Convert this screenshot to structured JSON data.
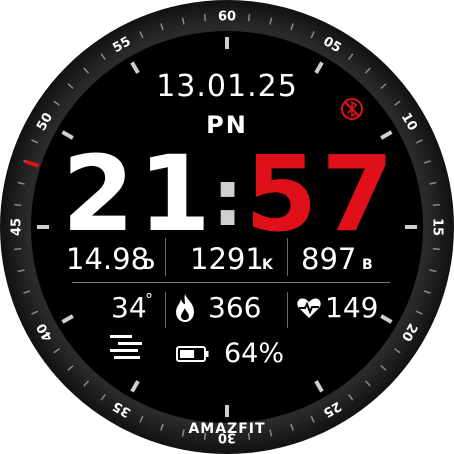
{
  "bezel": {
    "tick_labels": [
      "60",
      "05",
      "10",
      "15",
      "20",
      "25",
      "30",
      "35",
      "40",
      "45",
      "50",
      "55"
    ],
    "brand": "AMAZFIT",
    "seconds_marker_value": 48,
    "accent_color": "#e0101a"
  },
  "date": "13.01.25",
  "weekday": "PN",
  "time": {
    "hours": "21",
    "separator": ":",
    "minutes": "57"
  },
  "stats_row": {
    "distance": {
      "value": "14.98",
      "unit": "D"
    },
    "calories": {
      "value": "1291",
      "unit": "K"
    },
    "steps": {
      "value": "897",
      "unit": "B"
    }
  },
  "weather": {
    "temperature": "34",
    "degree": "°"
  },
  "fire": {
    "value": "366"
  },
  "heart_rate": {
    "value": "149"
  },
  "battery": {
    "value": "64%",
    "level": 0.64
  },
  "icons": {
    "bluetooth": "bluetooth-disconnected-icon",
    "fire": "fire-icon",
    "heart": "heart-rate-icon",
    "battery": "battery-icon",
    "weather": "weather-lines-icon"
  },
  "colors": {
    "hours": "#ffffff",
    "minutes": "#e0101a",
    "separator": "#d0d0d0",
    "background": "#000000"
  }
}
